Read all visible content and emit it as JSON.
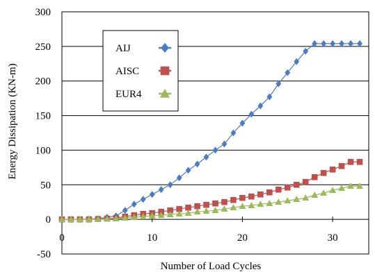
{
  "chart_data": {
    "type": "line",
    "xlabel": "Number of Load Cycles",
    "ylabel": "Energy Dissipation (KN-m)",
    "xlim": [
      0,
      34
    ],
    "ylim": [
      -50,
      300
    ],
    "xticks": [
      0,
      10,
      20,
      30
    ],
    "yticks": [
      -50,
      0,
      50,
      100,
      150,
      200,
      250,
      300
    ],
    "grid": "horizontal",
    "legend_position": "upper-left",
    "x": [
      0,
      1,
      2,
      3,
      4,
      5,
      6,
      7,
      8,
      9,
      10,
      11,
      12,
      13,
      14,
      15,
      16,
      17,
      18,
      19,
      20,
      21,
      22,
      23,
      24,
      25,
      26,
      27,
      28,
      29,
      30,
      31,
      32,
      33
    ],
    "series": [
      {
        "name": "AIJ",
        "color": "#4a7bc4",
        "edge": "#4a7bc4",
        "marker": "diamond",
        "values": [
          0,
          0,
          0,
          0.5,
          1,
          3,
          5,
          13,
          22,
          29,
          36,
          43,
          50,
          60,
          71,
          80,
          90,
          100,
          109,
          125,
          139,
          152,
          164,
          177,
          196,
          212,
          228,
          243,
          254,
          254,
          254,
          254,
          254,
          254
        ]
      },
      {
        "name": "AISC",
        "color": "#c0504d",
        "edge": "#c0504d",
        "marker": "square",
        "values": [
          0,
          0,
          0,
          0,
          0.5,
          1,
          2,
          4,
          6,
          8,
          9,
          11,
          13,
          15,
          17,
          19,
          21,
          23,
          25,
          28,
          31,
          33,
          36,
          39,
          43,
          46,
          50,
          54,
          61,
          67,
          72,
          77,
          83,
          83
        ]
      },
      {
        "name": "EUR4",
        "color": "#9bbb59",
        "edge": "#9bbb59",
        "marker": "triangle",
        "values": [
          0,
          0,
          0,
          0,
          0,
          0.5,
          1,
          2,
          3,
          4,
          5,
          6,
          7,
          8,
          9,
          11,
          12,
          13,
          15,
          17,
          19,
          20,
          22,
          23,
          25,
          27,
          29,
          31,
          35,
          38,
          42,
          45,
          48,
          48
        ]
      }
    ]
  }
}
